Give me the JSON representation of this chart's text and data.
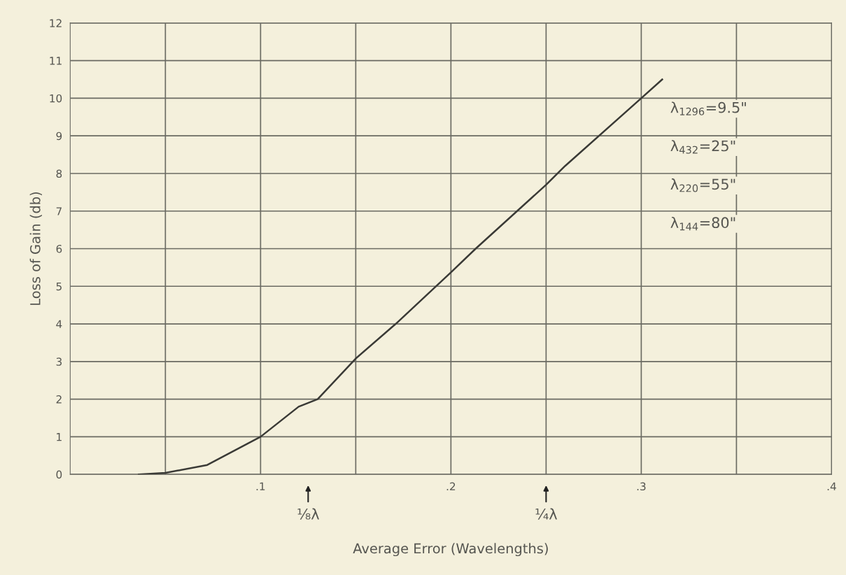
{
  "chart_data": {
    "type": "line",
    "xlabel": "Average Error (Wavelengths)",
    "ylabel": "Loss of Gain (db)",
    "x": [
      0.036,
      0.05,
      0.072,
      0.1,
      0.12,
      0.13,
      0.15,
      0.171,
      0.2,
      0.213,
      0.25,
      0.26,
      0.3,
      0.311
    ],
    "series": [
      {
        "color": "#3a3a36",
        "values": [
          0,
          0.04,
          0.25,
          1.0,
          1.8,
          2.0,
          3.08,
          4.0,
          5.37,
          6.0,
          7.7,
          8.2,
          10.0,
          10.5
        ]
      }
    ],
    "xlim": [
      0,
      0.4
    ],
    "ylim": [
      0,
      12
    ],
    "xticks": [
      {
        "value": 0.05,
        "label": null
      },
      {
        "value": 0.1,
        "label": ".1"
      },
      {
        "value": 0.15,
        "label": null
      },
      {
        "value": 0.2,
        "label": ".2"
      },
      {
        "value": 0.25,
        "label": null
      },
      {
        "value": 0.3,
        "label": ".3"
      },
      {
        "value": 0.35,
        "label": null
      },
      {
        "value": 0.4,
        "label": ".4"
      }
    ],
    "yticks": [
      0,
      1,
      2,
      3,
      4,
      5,
      6,
      7,
      8,
      9,
      10,
      11,
      12
    ],
    "grid": true,
    "marker": "none",
    "line_style": "solid",
    "annotations": [
      "λ$_{1296}$=9.5\"",
      "λ$_{432}$=25\"",
      "λ$_{220}$=55\"",
      "λ$_{144}$=80\"",
      "⅛λ",
      "¼λ"
    ]
  }
}
